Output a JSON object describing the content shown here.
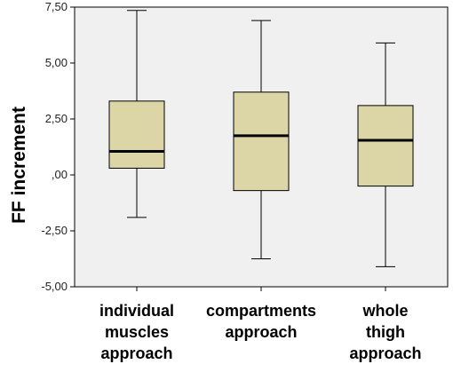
{
  "chart_data": {
    "type": "boxplot",
    "ylabel": "FF increment",
    "xlabel": "",
    "ylim": [
      -5.0,
      7.5
    ],
    "yticks": [
      -5.0,
      -2.5,
      0.0,
      2.5,
      5.0,
      7.5
    ],
    "ytick_labels": [
      "-5,00",
      "-2,50",
      ",00",
      "2,50",
      "5,00",
      "7,50"
    ],
    "grid": false,
    "box_fill": "#DCD6A6",
    "plot_background": "#F0F0F0",
    "categories": [
      [
        "individual",
        "muscles",
        "approach"
      ],
      [
        "compartments",
        "approach"
      ],
      [
        "whole",
        "thigh",
        "approach"
      ]
    ],
    "boxes": [
      {
        "min": -1.9,
        "q1": 0.3,
        "median": 1.05,
        "q3": 3.3,
        "max": 7.35
      },
      {
        "min": -3.75,
        "q1": -0.7,
        "median": 1.75,
        "q3": 3.7,
        "max": 6.9
      },
      {
        "min": -4.1,
        "q1": -0.5,
        "median": 1.55,
        "q3": 3.1,
        "max": 5.9
      }
    ]
  }
}
